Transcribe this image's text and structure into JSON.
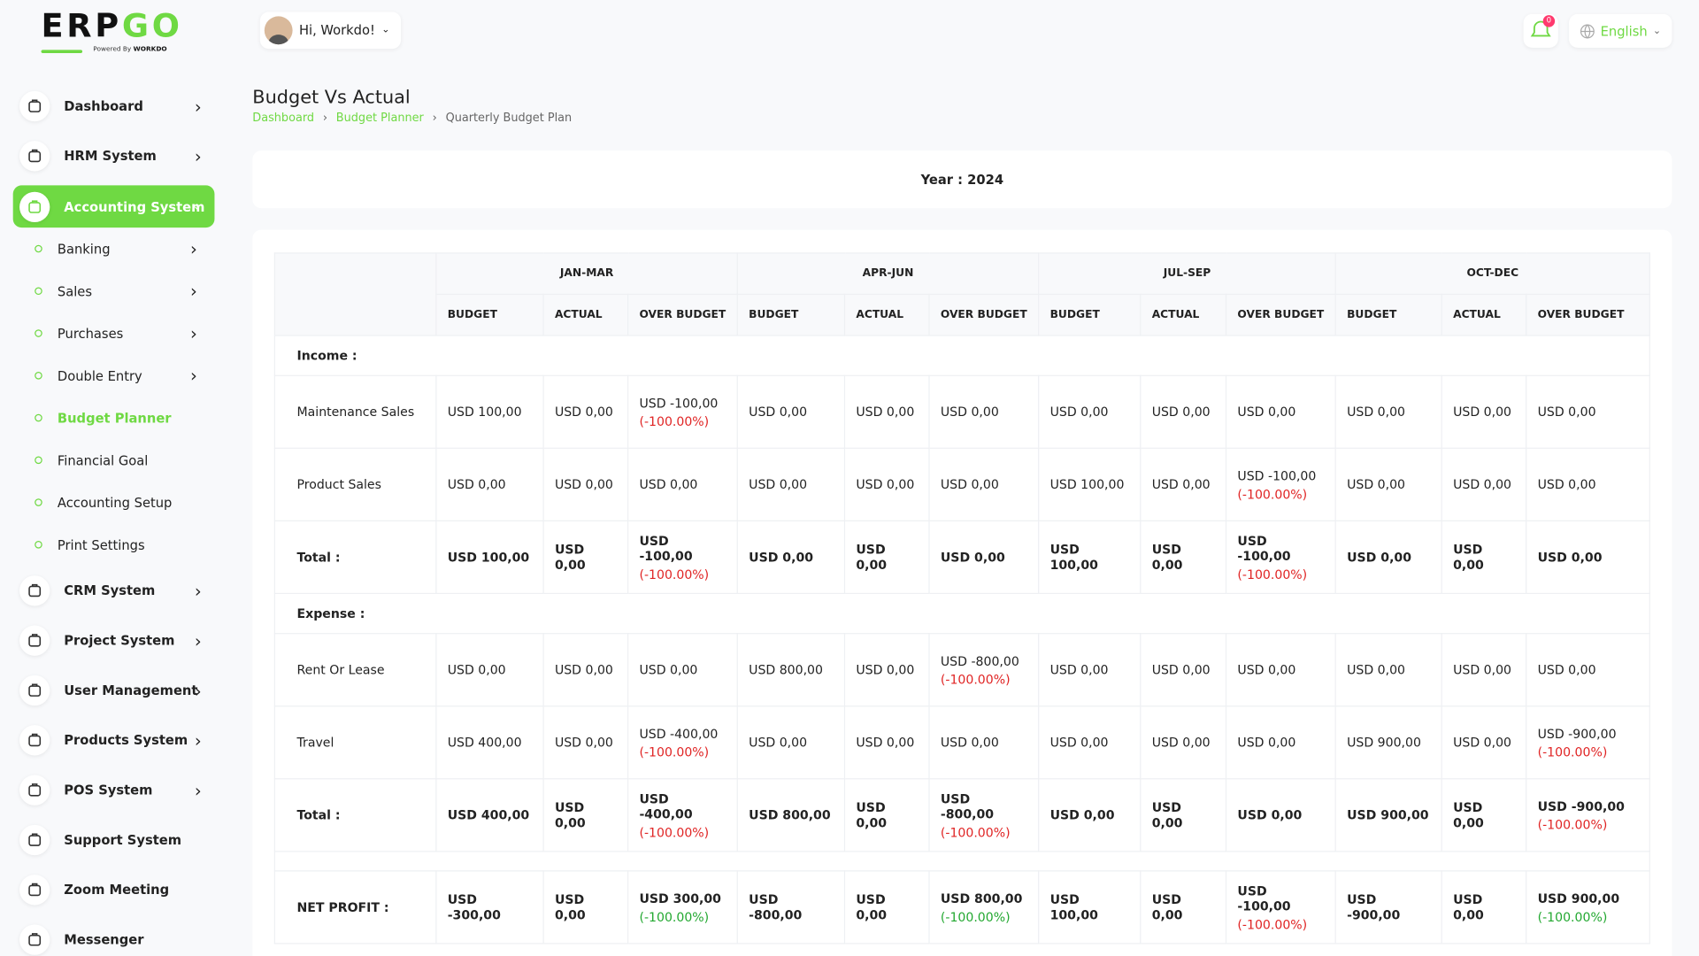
{
  "brand": {
    "text": "ERP",
    "accent": "GO",
    "powered_by": "Powered By",
    "company": "WORKDO"
  },
  "header": {
    "greeting": "Hi, Workdo!",
    "notifications": "0",
    "language": "English"
  },
  "sidebar": {
    "items": [
      {
        "label": "Dashboard",
        "has_submenu": true
      },
      {
        "label": "HRM System",
        "has_submenu": true
      },
      {
        "label": "Accounting System",
        "has_submenu": true,
        "active": true,
        "children": [
          {
            "label": "Banking",
            "has_submenu": true
          },
          {
            "label": "Sales",
            "has_submenu": true
          },
          {
            "label": "Purchases",
            "has_submenu": true
          },
          {
            "label": "Double Entry",
            "has_submenu": true
          },
          {
            "label": "Budget Planner",
            "has_submenu": false,
            "active": true
          },
          {
            "label": "Financial Goal",
            "has_submenu": false
          },
          {
            "label": "Accounting Setup",
            "has_submenu": false
          },
          {
            "label": "Print Settings",
            "has_submenu": false
          }
        ]
      },
      {
        "label": "CRM System",
        "has_submenu": true
      },
      {
        "label": "Project System",
        "has_submenu": true
      },
      {
        "label": "User Management",
        "has_submenu": true
      },
      {
        "label": "Products System",
        "has_submenu": true
      },
      {
        "label": "POS System",
        "has_submenu": true
      },
      {
        "label": "Support System",
        "has_submenu": false
      },
      {
        "label": "Zoom Meeting",
        "has_submenu": false
      },
      {
        "label": "Messenger",
        "has_submenu": false
      }
    ]
  },
  "page": {
    "title": "Budget Vs Actual",
    "breadcrumb": [
      "Dashboard",
      "Budget Planner",
      "Quarterly Budget Plan"
    ]
  },
  "year_card": {
    "label": "Year : 2024"
  },
  "table": {
    "periods": [
      "JAN-MAR",
      "APR-JUN",
      "JUL-SEP",
      "OCT-DEC"
    ],
    "columns": [
      "BUDGET",
      "ACTUAL",
      "OVER BUDGET"
    ],
    "sections": [
      {
        "label": "Income :",
        "rows": [
          {
            "label": "Maintenance Sales",
            "total": false,
            "cells": [
              [
                "USD 100,00"
              ],
              [
                "USD 0,00"
              ],
              [
                "USD -100,00",
                "(-100.00%)"
              ],
              [
                "USD 0,00"
              ],
              [
                "USD 0,00"
              ],
              [
                "USD 0,00"
              ],
              [
                "USD 0,00"
              ],
              [
                "USD 0,00"
              ],
              [
                "USD 0,00"
              ],
              [
                "USD 0,00"
              ],
              [
                "USD 0,00"
              ],
              [
                "USD 0,00"
              ]
            ]
          },
          {
            "label": "Product Sales",
            "total": false,
            "cells": [
              [
                "USD 0,00"
              ],
              [
                "USD 0,00"
              ],
              [
                "USD 0,00"
              ],
              [
                "USD 0,00"
              ],
              [
                "USD 0,00"
              ],
              [
                "USD 0,00"
              ],
              [
                "USD 100,00"
              ],
              [
                "USD 0,00"
              ],
              [
                "USD -100,00",
                "(-100.00%)"
              ],
              [
                "USD 0,00"
              ],
              [
                "USD 0,00"
              ],
              [
                "USD 0,00"
              ]
            ]
          },
          {
            "label": "Total :",
            "total": true,
            "cells": [
              [
                "USD 100,00"
              ],
              [
                "USD 0,00"
              ],
              [
                "USD -100,00",
                "(-100.00%)"
              ],
              [
                "USD 0,00"
              ],
              [
                "USD 0,00"
              ],
              [
                "USD 0,00"
              ],
              [
                "USD 100,00"
              ],
              [
                "USD 0,00"
              ],
              [
                "USD -100,00",
                "(-100.00%)"
              ],
              [
                "USD 0,00"
              ],
              [
                "USD 0,00"
              ],
              [
                "USD 0,00"
              ]
            ]
          }
        ]
      },
      {
        "label": "Expense :",
        "rows": [
          {
            "label": "Rent Or Lease",
            "total": false,
            "cells": [
              [
                "USD 0,00"
              ],
              [
                "USD 0,00"
              ],
              [
                "USD 0,00"
              ],
              [
                "USD 800,00"
              ],
              [
                "USD 0,00"
              ],
              [
                "USD -800,00",
                "(-100.00%)"
              ],
              [
                "USD 0,00"
              ],
              [
                "USD 0,00"
              ],
              [
                "USD 0,00"
              ],
              [
                "USD 0,00"
              ],
              [
                "USD 0,00"
              ],
              [
                "USD 0,00"
              ]
            ]
          },
          {
            "label": "Travel",
            "total": false,
            "cells": [
              [
                "USD 400,00"
              ],
              [
                "USD 0,00"
              ],
              [
                "USD -400,00",
                "(-100.00%)"
              ],
              [
                "USD 0,00"
              ],
              [
                "USD 0,00"
              ],
              [
                "USD 0,00"
              ],
              [
                "USD 0,00"
              ],
              [
                "USD 0,00"
              ],
              [
                "USD 0,00"
              ],
              [
                "USD 900,00"
              ],
              [
                "USD 0,00"
              ],
              [
                "USD -900,00",
                "(-100.00%)"
              ]
            ]
          },
          {
            "label": "Total :",
            "total": true,
            "cells": [
              [
                "USD 400,00"
              ],
              [
                "USD 0,00"
              ],
              [
                "USD -400,00",
                "(-100.00%)"
              ],
              [
                "USD 800,00"
              ],
              [
                "USD 0,00"
              ],
              [
                "USD -800,00",
                "(-100.00%)"
              ],
              [
                "USD 0,00"
              ],
              [
                "USD 0,00"
              ],
              [
                "USD 0,00"
              ],
              [
                "USD 900,00"
              ],
              [
                "USD 0,00"
              ],
              [
                "USD -900,00",
                "(-100.00%)"
              ]
            ]
          }
        ]
      }
    ],
    "net_profit": {
      "label": "NET PROFIT :",
      "cells": [
        [
          "USD -300,00"
        ],
        [
          "USD 0,00"
        ],
        [
          "USD 300,00",
          "(-100.00%)"
        ],
        [
          "USD -800,00"
        ],
        [
          "USD 0,00"
        ],
        [
          "USD 800,00",
          "(-100.00%)"
        ],
        [
          "USD 100,00"
        ],
        [
          "USD 0,00"
        ],
        [
          "USD -100,00",
          "(-100.00%)"
        ],
        [
          "USD -900,00"
        ],
        [
          "USD 0,00"
        ],
        [
          "USD 900,00",
          "(-100.00%)"
        ]
      ]
    }
  }
}
